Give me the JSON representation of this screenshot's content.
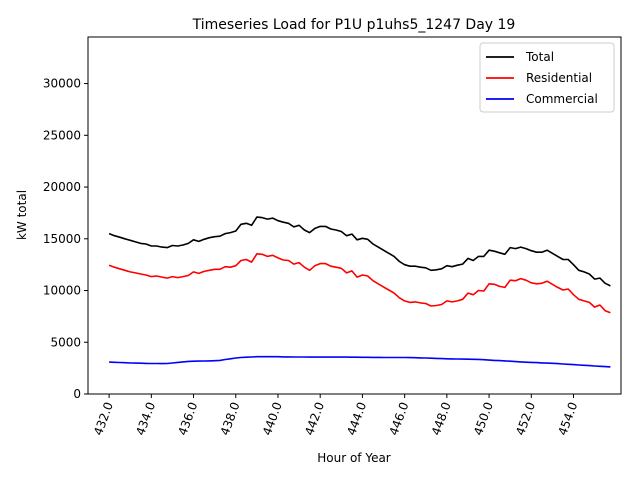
{
  "chart_data": {
    "type": "line",
    "title": "Timeseries Load for P1U p1uhs5_1247  Day 19",
    "xlabel": "Hour of Year",
    "ylabel": "kW total",
    "xlim": [
      431.0,
      456.25
    ],
    "ylim": [
      0,
      34500
    ],
    "xticks": [
      432.0,
      434.0,
      436.0,
      438.0,
      440.0,
      442.0,
      444.0,
      446.0,
      448.0,
      450.0,
      452.0,
      454.0
    ],
    "xtick_labels": [
      "432.0",
      "434.0",
      "436.0",
      "438.0",
      "440.0",
      "442.0",
      "444.0",
      "446.0",
      "448.0",
      "450.0",
      "452.0",
      "454.0"
    ],
    "yticks": [
      0,
      5000,
      10000,
      15000,
      20000,
      25000,
      30000
    ],
    "ytick_labels": [
      "0",
      "5000",
      "10000",
      "15000",
      "20000",
      "25000",
      "30000"
    ],
    "legend_position": "top-right",
    "x": [
      432.0,
      432.25,
      432.5,
      432.75,
      433.0,
      433.25,
      433.5,
      433.75,
      434.0,
      434.25,
      434.5,
      434.75,
      435.0,
      435.25,
      435.5,
      435.75,
      436.0,
      436.25,
      436.5,
      436.75,
      437.0,
      437.25,
      437.5,
      437.75,
      438.0,
      438.25,
      438.5,
      438.75,
      439.0,
      439.25,
      439.5,
      439.75,
      440.0,
      440.25,
      440.5,
      440.75,
      441.0,
      441.25,
      441.5,
      441.75,
      442.0,
      442.25,
      442.5,
      442.75,
      443.0,
      443.25,
      443.5,
      443.75,
      444.0,
      444.25,
      444.5,
      444.75,
      445.0,
      445.25,
      445.5,
      445.75,
      446.0,
      446.25,
      446.5,
      446.75,
      447.0,
      447.25,
      447.5,
      447.75,
      448.0,
      448.25,
      448.5,
      448.75,
      449.0,
      449.25,
      449.5,
      449.75,
      450.0,
      450.25,
      450.5,
      450.75,
      451.0,
      451.25,
      451.5,
      451.75,
      452.0,
      452.25,
      452.5,
      452.75,
      453.0,
      453.25,
      453.5,
      453.75,
      454.0,
      454.25,
      454.5,
      454.75,
      455.0,
      455.25,
      455.5,
      455.75
    ],
    "series": [
      {
        "name": "Total",
        "color": "#000000",
        "values": [
          15500,
          15300,
          15150,
          15000,
          14850,
          14700,
          14550,
          14500,
          14300,
          14300,
          14200,
          14150,
          14350,
          14300,
          14400,
          14550,
          14900,
          14750,
          14950,
          15100,
          15200,
          15250,
          15500,
          15600,
          15750,
          16400,
          16500,
          16300,
          17100,
          17050,
          16900,
          17000,
          16750,
          16600,
          16500,
          16150,
          16300,
          15850,
          15600,
          16000,
          16200,
          16200,
          15950,
          15850,
          15700,
          15300,
          15450,
          14900,
          15050,
          14950,
          14500,
          14200,
          13900,
          13600,
          13300,
          12800,
          12500,
          12350,
          12350,
          12250,
          12200,
          11950,
          12000,
          12100,
          12400,
          12300,
          12450,
          12550,
          13100,
          12900,
          13300,
          13300,
          13900,
          13800,
          13650,
          13500,
          14150,
          14050,
          14200,
          14050,
          13850,
          13700,
          13700,
          13900,
          13600,
          13300,
          13000,
          13000,
          12500,
          11950,
          11800,
          11600,
          11100,
          11200,
          10700,
          10450
        ]
      },
      {
        "name": "Residential",
        "color": "#ff0000",
        "values": [
          12450,
          12250,
          12100,
          11950,
          11800,
          11700,
          11600,
          11500,
          11350,
          11400,
          11300,
          11200,
          11350,
          11250,
          11350,
          11450,
          11800,
          11650,
          11850,
          11950,
          12050,
          12050,
          12300,
          12250,
          12400,
          12900,
          13000,
          12750,
          13550,
          13500,
          13300,
          13400,
          13150,
          12950,
          12900,
          12550,
          12700,
          12250,
          11950,
          12400,
          12600,
          12600,
          12350,
          12250,
          12150,
          11700,
          11900,
          11300,
          11500,
          11400,
          10950,
          10650,
          10350,
          10050,
          9750,
          9300,
          9000,
          8850,
          8900,
          8800,
          8750,
          8500,
          8550,
          8650,
          9000,
          8900,
          9000,
          9150,
          9750,
          9600,
          10000,
          9950,
          10650,
          10600,
          10400,
          10300,
          11000,
          10950,
          11150,
          11000,
          10750,
          10650,
          10700,
          10900,
          10600,
          10300,
          10050,
          10150,
          9600,
          9150,
          9000,
          8850,
          8400,
          8600,
          8050,
          7850
        ]
      },
      {
        "name": "Commercial",
        "color": "#0000ff",
        "values": [
          3080,
          3060,
          3040,
          3020,
          3000,
          2990,
          2980,
          2960,
          2950,
          2950,
          2940,
          2950,
          3000,
          3050,
          3100,
          3150,
          3170,
          3180,
          3190,
          3200,
          3220,
          3250,
          3330,
          3400,
          3480,
          3530,
          3560,
          3580,
          3600,
          3600,
          3600,
          3600,
          3600,
          3590,
          3590,
          3580,
          3580,
          3575,
          3570,
          3570,
          3570,
          3570,
          3570,
          3570,
          3570,
          3570,
          3560,
          3560,
          3550,
          3545,
          3540,
          3535,
          3530,
          3530,
          3530,
          3530,
          3530,
          3520,
          3510,
          3490,
          3480,
          3460,
          3440,
          3420,
          3400,
          3390,
          3380,
          3370,
          3360,
          3350,
          3340,
          3310,
          3280,
          3250,
          3230,
          3200,
          3170,
          3130,
          3100,
          3070,
          3050,
          3030,
          3010,
          2990,
          2970,
          2940,
          2900,
          2870,
          2840,
          2800,
          2770,
          2740,
          2710,
          2680,
          2650,
          2620
        ]
      }
    ]
  }
}
